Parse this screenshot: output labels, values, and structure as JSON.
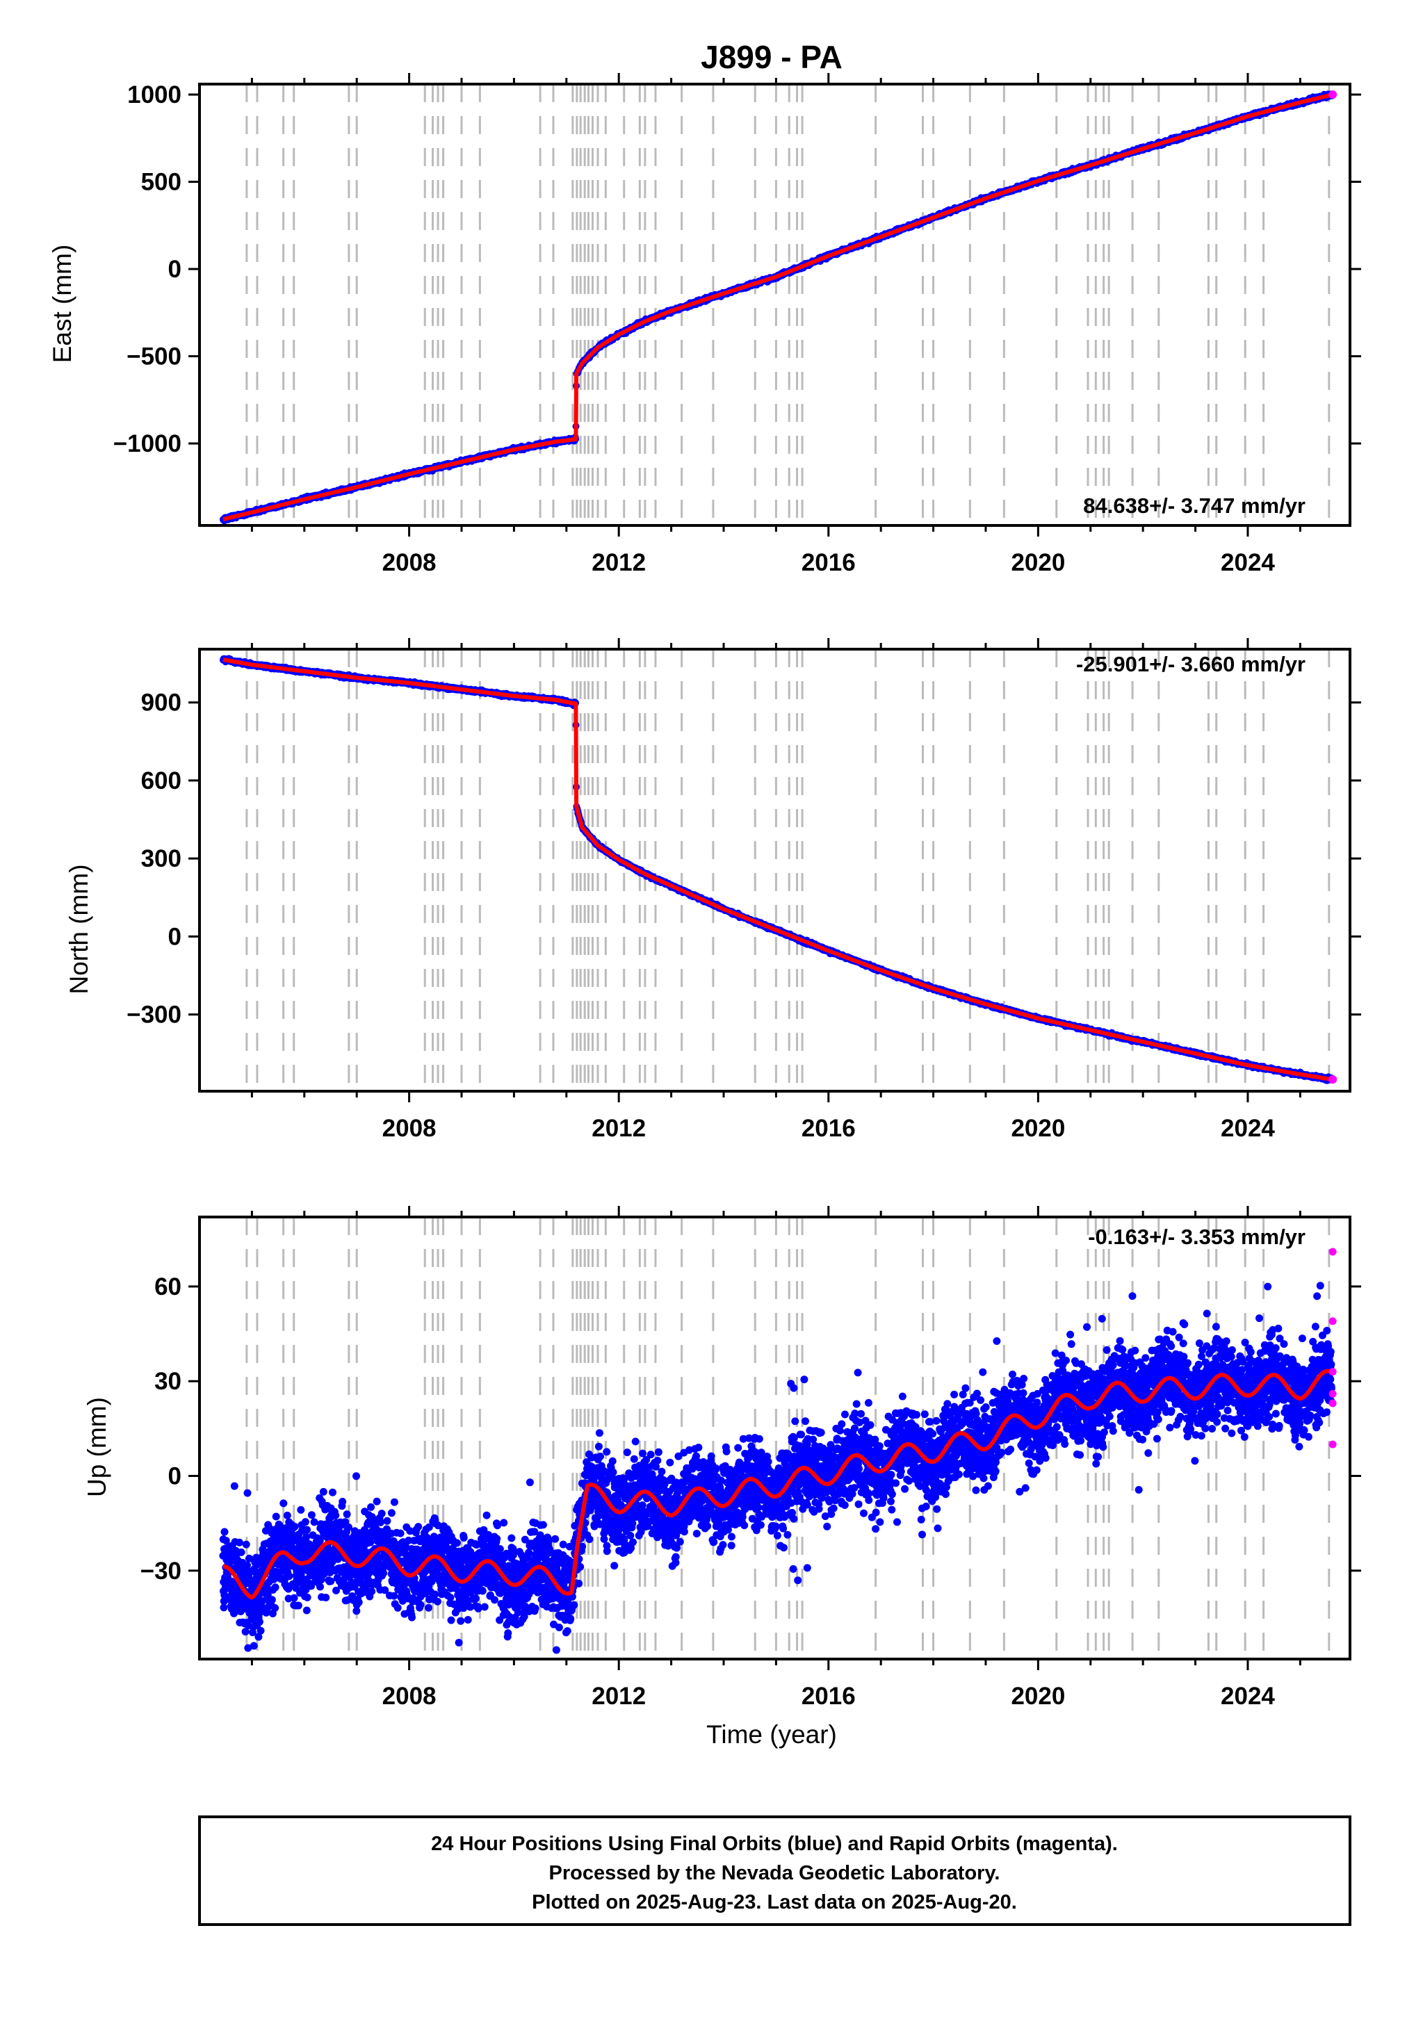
{
  "title": "J899 - PA",
  "colors": {
    "final_orbits": "#0000ff",
    "rapid_orbits": "#ff00ff",
    "model": "#ff0000",
    "event_lines": "#bbbbbb",
    "frame": "#000000"
  },
  "chart_data": [
    {
      "type": "scatter",
      "title": "J899 - PA",
      "xlabel": "",
      "ylabel": "East (mm)",
      "xlim": [
        2004.0,
        2025.95
      ],
      "ylim": [
        -1470,
        1060
      ],
      "x_ticks": [
        2008,
        2012,
        2016,
        2020,
        2024
      ],
      "y_ticks": [
        -1000,
        -500,
        0,
        500,
        1000
      ],
      "y_tick_labels": [
        "−1000",
        "−500",
        "0",
        "500",
        "1000"
      ],
      "rate_label": "84.638+/- 3.747 mm/yr",
      "rate_position": "bottom-right",
      "grid": false,
      "offset_epochs": [
        2004.9,
        2005.1,
        2005.6,
        2005.8,
        2006.85,
        2007.0,
        2008.3,
        2008.45,
        2008.55,
        2008.65,
        2009.0,
        2009.35,
        2010.5,
        2010.75,
        2011.12,
        2011.2,
        2011.27,
        2011.35,
        2011.42,
        2011.5,
        2011.6,
        2011.75,
        2012.1,
        2012.4,
        2012.5,
        2012.7,
        2013.2,
        2013.8,
        2014.6,
        2015.0,
        2015.25,
        2015.4,
        2015.5,
        2016.9,
        2017.8,
        2018.0,
        2018.7,
        2019.35,
        2020.35,
        2020.95,
        2021.1,
        2021.25,
        2021.35,
        2021.8,
        2022.3,
        2023.25,
        2023.4,
        2023.95,
        2024.3,
        2025.55
      ],
      "series": [
        {
          "name": "",
          "x": [
            2004.45,
            2005.0,
            2006.0,
            2007.0,
            2008.0,
            2009.0,
            2010.0,
            2010.8,
            2011.18,
            2011.19,
            2011.3,
            2011.6,
            2012.0,
            2012.5,
            2013.0,
            2014.0,
            2015.0,
            2016.0,
            2017.0,
            2018.0,
            2019.0,
            2020.0,
            2021.0,
            2022.0,
            2023.0,
            2024.0,
            2025.0,
            2025.62
          ],
          "values": [
            -1435,
            -1395,
            -1320,
            -1250,
            -1175,
            -1105,
            -1035,
            -990,
            -975,
            -600,
            -540,
            -450,
            -375,
            -300,
            -240,
            -140,
            -45,
            75,
            185,
            295,
            405,
            505,
            595,
            690,
            780,
            875,
            955,
            1000
          ]
        }
      ]
    },
    {
      "type": "scatter",
      "title": "",
      "xlabel": "",
      "ylabel": "North (mm)",
      "xlim": [
        2004.0,
        2025.95
      ],
      "ylim": [
        -595,
        1105
      ],
      "x_ticks": [
        2008,
        2012,
        2016,
        2020,
        2024
      ],
      "y_ticks": [
        -300,
        0,
        300,
        600,
        900
      ],
      "y_tick_labels": [
        "−300",
        "0",
        "300",
        "600",
        "900"
      ],
      "rate_label": "-25.901+/- 3.660 mm/yr",
      "rate_position": "top-right",
      "grid": false,
      "offset_epochs": [
        2004.9,
        2005.1,
        2005.6,
        2005.8,
        2006.85,
        2007.0,
        2008.3,
        2008.45,
        2008.55,
        2008.65,
        2009.0,
        2009.35,
        2010.5,
        2010.75,
        2011.12,
        2011.2,
        2011.27,
        2011.35,
        2011.42,
        2011.5,
        2011.6,
        2011.75,
        2012.1,
        2012.4,
        2012.5,
        2012.7,
        2013.2,
        2013.8,
        2014.6,
        2015.0,
        2015.25,
        2015.4,
        2015.5,
        2016.9,
        2017.8,
        2018.0,
        2018.7,
        2019.35,
        2020.35,
        2020.95,
        2021.1,
        2021.25,
        2021.35,
        2021.8,
        2022.3,
        2023.25,
        2023.4,
        2023.95,
        2024.3,
        2025.55
      ],
      "series": [
        {
          "name": "",
          "x": [
            2004.45,
            2005.0,
            2006.0,
            2007.0,
            2008.0,
            2009.0,
            2010.0,
            2010.8,
            2011.18,
            2011.19,
            2011.3,
            2011.6,
            2012.0,
            2012.5,
            2013.0,
            2014.0,
            2015.0,
            2016.0,
            2017.0,
            2018.0,
            2019.0,
            2020.0,
            2021.0,
            2022.0,
            2023.0,
            2024.0,
            2025.0,
            2025.62
          ],
          "values": [
            1065,
            1045,
            1020,
            995,
            975,
            950,
            925,
            910,
            895,
            500,
            420,
            350,
            295,
            240,
            195,
            105,
            25,
            -55,
            -130,
            -200,
            -260,
            -315,
            -360,
            -405,
            -450,
            -495,
            -530,
            -550
          ]
        }
      ]
    },
    {
      "type": "scatter",
      "title": "",
      "xlabel": "Time (year)",
      "ylabel": "Up (mm)",
      "xlim": [
        2004.0,
        2025.95
      ],
      "ylim": [
        -58,
        82
      ],
      "x_ticks": [
        2008,
        2012,
        2016,
        2020,
        2024
      ],
      "y_ticks": [
        -30,
        0,
        30,
        60
      ],
      "y_tick_labels": [
        "−30",
        "0",
        "30",
        "60"
      ],
      "rate_label": "-0.163+/- 3.353 mm/yr",
      "rate_position": "top-right",
      "grid": false,
      "offset_epochs": [
        2004.9,
        2005.1,
        2005.6,
        2005.8,
        2006.85,
        2007.0,
        2008.3,
        2008.45,
        2008.55,
        2008.65,
        2009.0,
        2009.35,
        2010.5,
        2010.75,
        2011.12,
        2011.2,
        2011.27,
        2011.35,
        2011.42,
        2011.5,
        2011.6,
        2011.75,
        2012.1,
        2012.4,
        2012.5,
        2012.7,
        2013.2,
        2013.8,
        2014.6,
        2015.0,
        2015.25,
        2015.4,
        2015.5,
        2016.9,
        2017.8,
        2018.0,
        2018.7,
        2019.35,
        2020.35,
        2020.95,
        2021.1,
        2021.25,
        2021.35,
        2021.8,
        2022.3,
        2023.25,
        2023.4,
        2023.95,
        2024.3,
        2025.55
      ],
      "series": [
        {
          "name": "",
          "x": [
            2004.45,
            2005.0,
            2005.6,
            2006.0,
            2007.0,
            2008.0,
            2009.0,
            2010.0,
            2011.1,
            2011.2,
            2011.4,
            2012.0,
            2013.0,
            2014.0,
            2015.0,
            2016.0,
            2017.0,
            2018.0,
            2019.0,
            2020.0,
            2021.0,
            2022.0,
            2023.0,
            2024.0,
            2025.0,
            2025.6
          ],
          "values": [
            -32,
            -35,
            -27,
            -24,
            -25,
            -28,
            -30,
            -31,
            -34,
            -22,
            -6,
            -8,
            -9,
            -6,
            -3,
            1,
            5,
            8,
            12,
            19,
            25,
            27,
            28,
            29,
            28,
            30
          ]
        },
        {
          "name": "",
          "x": [
            2025.62,
            2025.62,
            2025.62,
            2025.62,
            2025.62,
            2025.62
          ],
          "values": [
            71,
            49,
            33,
            26,
            23,
            10
          ]
        }
      ]
    }
  ],
  "footer": {
    "line1": "24 Hour Positions Using Final Orbits (blue) and Rapid Orbits (magenta).",
    "line2": "Processed by the Nevada Geodetic Laboratory.",
    "line3": "Plotted on 2025-Aug-23. Last data on 2025-Aug-20."
  }
}
